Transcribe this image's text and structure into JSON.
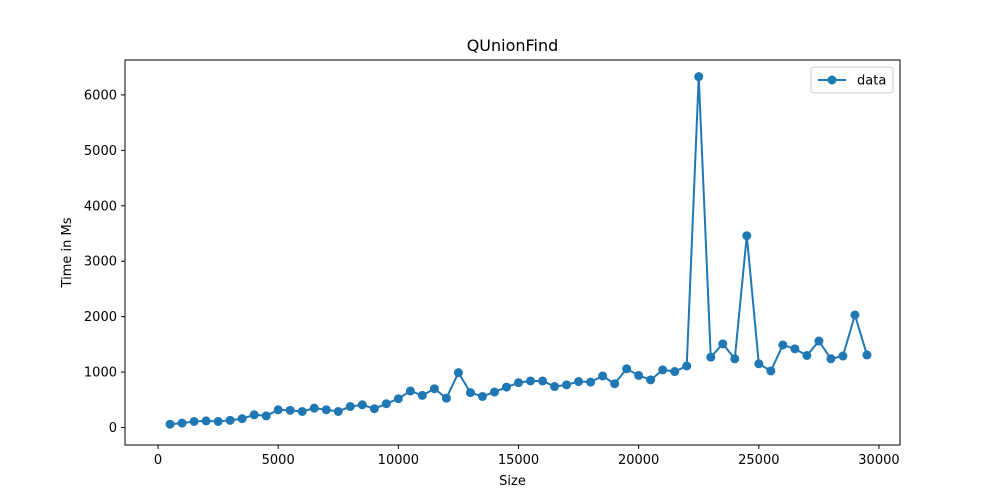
{
  "chart_data": {
    "type": "line",
    "title": "QUnionFind",
    "xlabel": "Size",
    "ylabel": "Time in Ms",
    "xlim": [
      -1375,
      30875
    ],
    "ylim": [
      -315,
      6630
    ],
    "xticks": [
      0,
      5000,
      10000,
      15000,
      20000,
      25000,
      30000
    ],
    "yticks": [
      0,
      1000,
      2000,
      3000,
      4000,
      5000,
      6000
    ],
    "grid": false,
    "legend": "top-right",
    "color": "#1f77b4",
    "marker": "circle",
    "series": [
      {
        "name": "data",
        "x": [
          500,
          1000,
          1500,
          2000,
          2500,
          3000,
          3500,
          4000,
          4500,
          5000,
          5500,
          6000,
          6500,
          7000,
          7500,
          8000,
          8500,
          9000,
          9500,
          10000,
          10500,
          11000,
          11500,
          12000,
          12500,
          13000,
          13500,
          14000,
          14500,
          15000,
          15500,
          16000,
          16500,
          17000,
          17500,
          18000,
          18500,
          19000,
          19500,
          20000,
          20500,
          21000,
          21500,
          22000,
          22500,
          23000,
          23500,
          24000,
          24500,
          25000,
          25500,
          26000,
          26500,
          27000,
          27500,
          28000,
          28500,
          29000,
          29500
        ],
        "y": [
          60,
          80,
          110,
          120,
          110,
          130,
          160,
          230,
          210,
          320,
          310,
          290,
          350,
          320,
          290,
          380,
          410,
          340,
          430,
          520,
          660,
          580,
          700,
          530,
          990,
          630,
          560,
          640,
          730,
          810,
          840,
          840,
          740,
          770,
          830,
          820,
          930,
          790,
          1060,
          940,
          860,
          1040,
          1010,
          1110,
          6330,
          1270,
          1510,
          1240,
          3460,
          1150,
          1020,
          1490,
          1420,
          1300,
          1560,
          1240,
          1290,
          2030,
          1310
        ]
      }
    ]
  }
}
